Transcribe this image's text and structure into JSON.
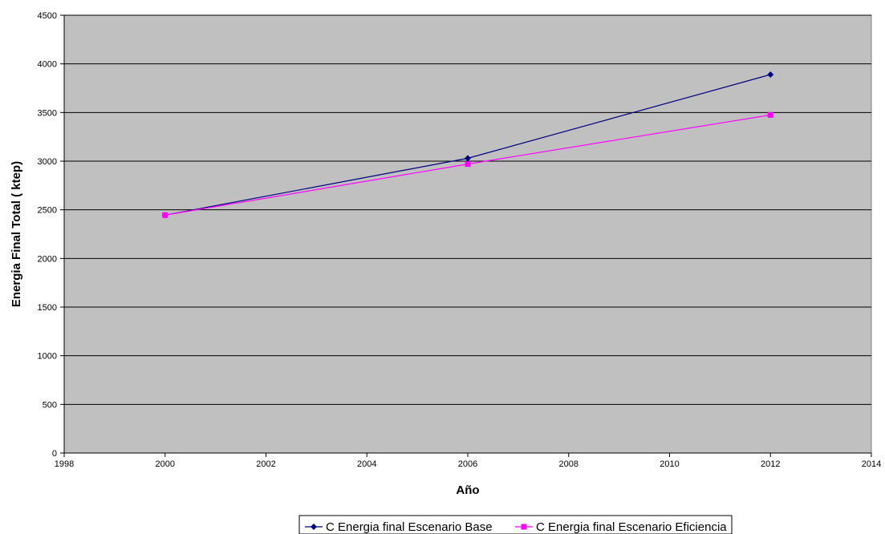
{
  "chart_data": {
    "type": "line",
    "title": "",
    "xlabel": "Año",
    "ylabel": "Energia Final Total ( ktep)",
    "xlim": [
      1998,
      2014
    ],
    "ylim": [
      0,
      4500
    ],
    "x_ticks": [
      1998,
      2000,
      2002,
      2004,
      2006,
      2008,
      2010,
      2012,
      2014
    ],
    "y_ticks": [
      0,
      500,
      1000,
      1500,
      2000,
      2500,
      3000,
      3500,
      4000,
      4500
    ],
    "grid": "horizontal",
    "plot_background": "#C0C0C0",
    "legend_position": "bottom",
    "series": [
      {
        "name": "C Energia final Escenario Base",
        "color": "#000080",
        "marker": "diamond",
        "x": [
          2000,
          2006,
          2012
        ],
        "y": [
          2445,
          3030,
          3890
        ]
      },
      {
        "name": "C Energia final Escenario Eficiencia",
        "color": "#FF00FF",
        "marker": "square",
        "x": [
          2000,
          2006,
          2012
        ],
        "y": [
          2445,
          2970,
          3475
        ]
      }
    ]
  }
}
